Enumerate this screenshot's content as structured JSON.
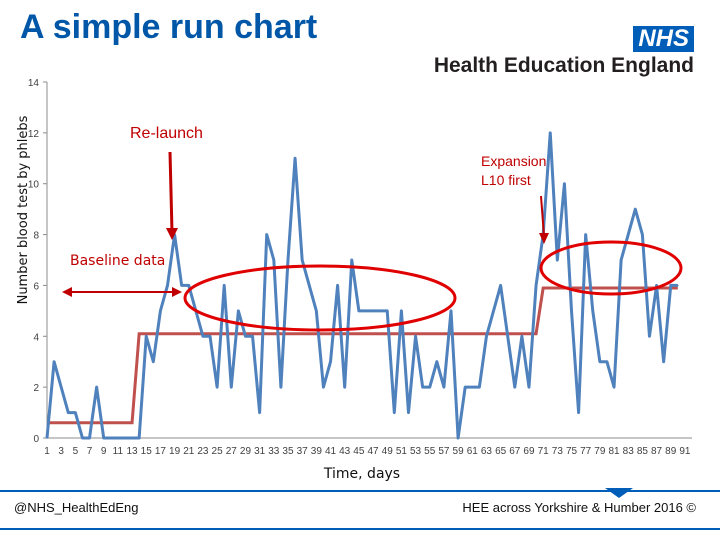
{
  "page": {
    "title": "A simple run chart",
    "logo": {
      "nhs": "NHS",
      "org": "Health Education England"
    },
    "footer_left": "@NHS_HealthEdEng",
    "footer_right": "HEE across Yorkshire & Humber 2016 ©"
  },
  "colors": {
    "title": "#0057a8",
    "series": "#4f81bd",
    "median": "#c0504d",
    "annotation": "#c00000",
    "brand": "#005eb8"
  },
  "chart_data": {
    "type": "line",
    "title": "",
    "xlabel": "Time, days",
    "ylabel": "Number blood test by phlebs",
    "ylim": [
      0,
      14
    ],
    "yticks": [
      0,
      2,
      4,
      6,
      8,
      10,
      12,
      14
    ],
    "xlim": [
      1,
      92
    ],
    "xtick_labels_every": 2,
    "grid": false,
    "series": [
      {
        "type": "line",
        "values": [
          0,
          3,
          2,
          1,
          1,
          0,
          0,
          2,
          0,
          0,
          0,
          0,
          0,
          0,
          4,
          3,
          5,
          6,
          8,
          6,
          6,
          5,
          4,
          4,
          2,
          6,
          2,
          5,
          4,
          4,
          1,
          8,
          7,
          2,
          7,
          11,
          7,
          6,
          5,
          2,
          3,
          6,
          2,
          7,
          5,
          5,
          5,
          5,
          5,
          1,
          5,
          1,
          4,
          2,
          2,
          3,
          2,
          5,
          0,
          2,
          2,
          2,
          4,
          5,
          6,
          4,
          2,
          4,
          2,
          6,
          8,
          12,
          7,
          10,
          5,
          1,
          8,
          5,
          3,
          3,
          2,
          7,
          8,
          9,
          8,
          4,
          6,
          3,
          6,
          6
        ]
      },
      {
        "type": "step",
        "segments": [
          {
            "x_start": 1,
            "x_end": 13,
            "value": 0.6
          },
          {
            "x_start": 14,
            "x_end": 70,
            "value": 4.1
          },
          {
            "x_start": 71,
            "x_end": 90,
            "value": 5.9
          }
        ]
      }
    ],
    "annotations": [
      {
        "text": "Re-launch"
      },
      {
        "text_line1": "Expansion",
        "text_line2": "L10 first"
      },
      {
        "text": "Baseline data"
      }
    ]
  }
}
